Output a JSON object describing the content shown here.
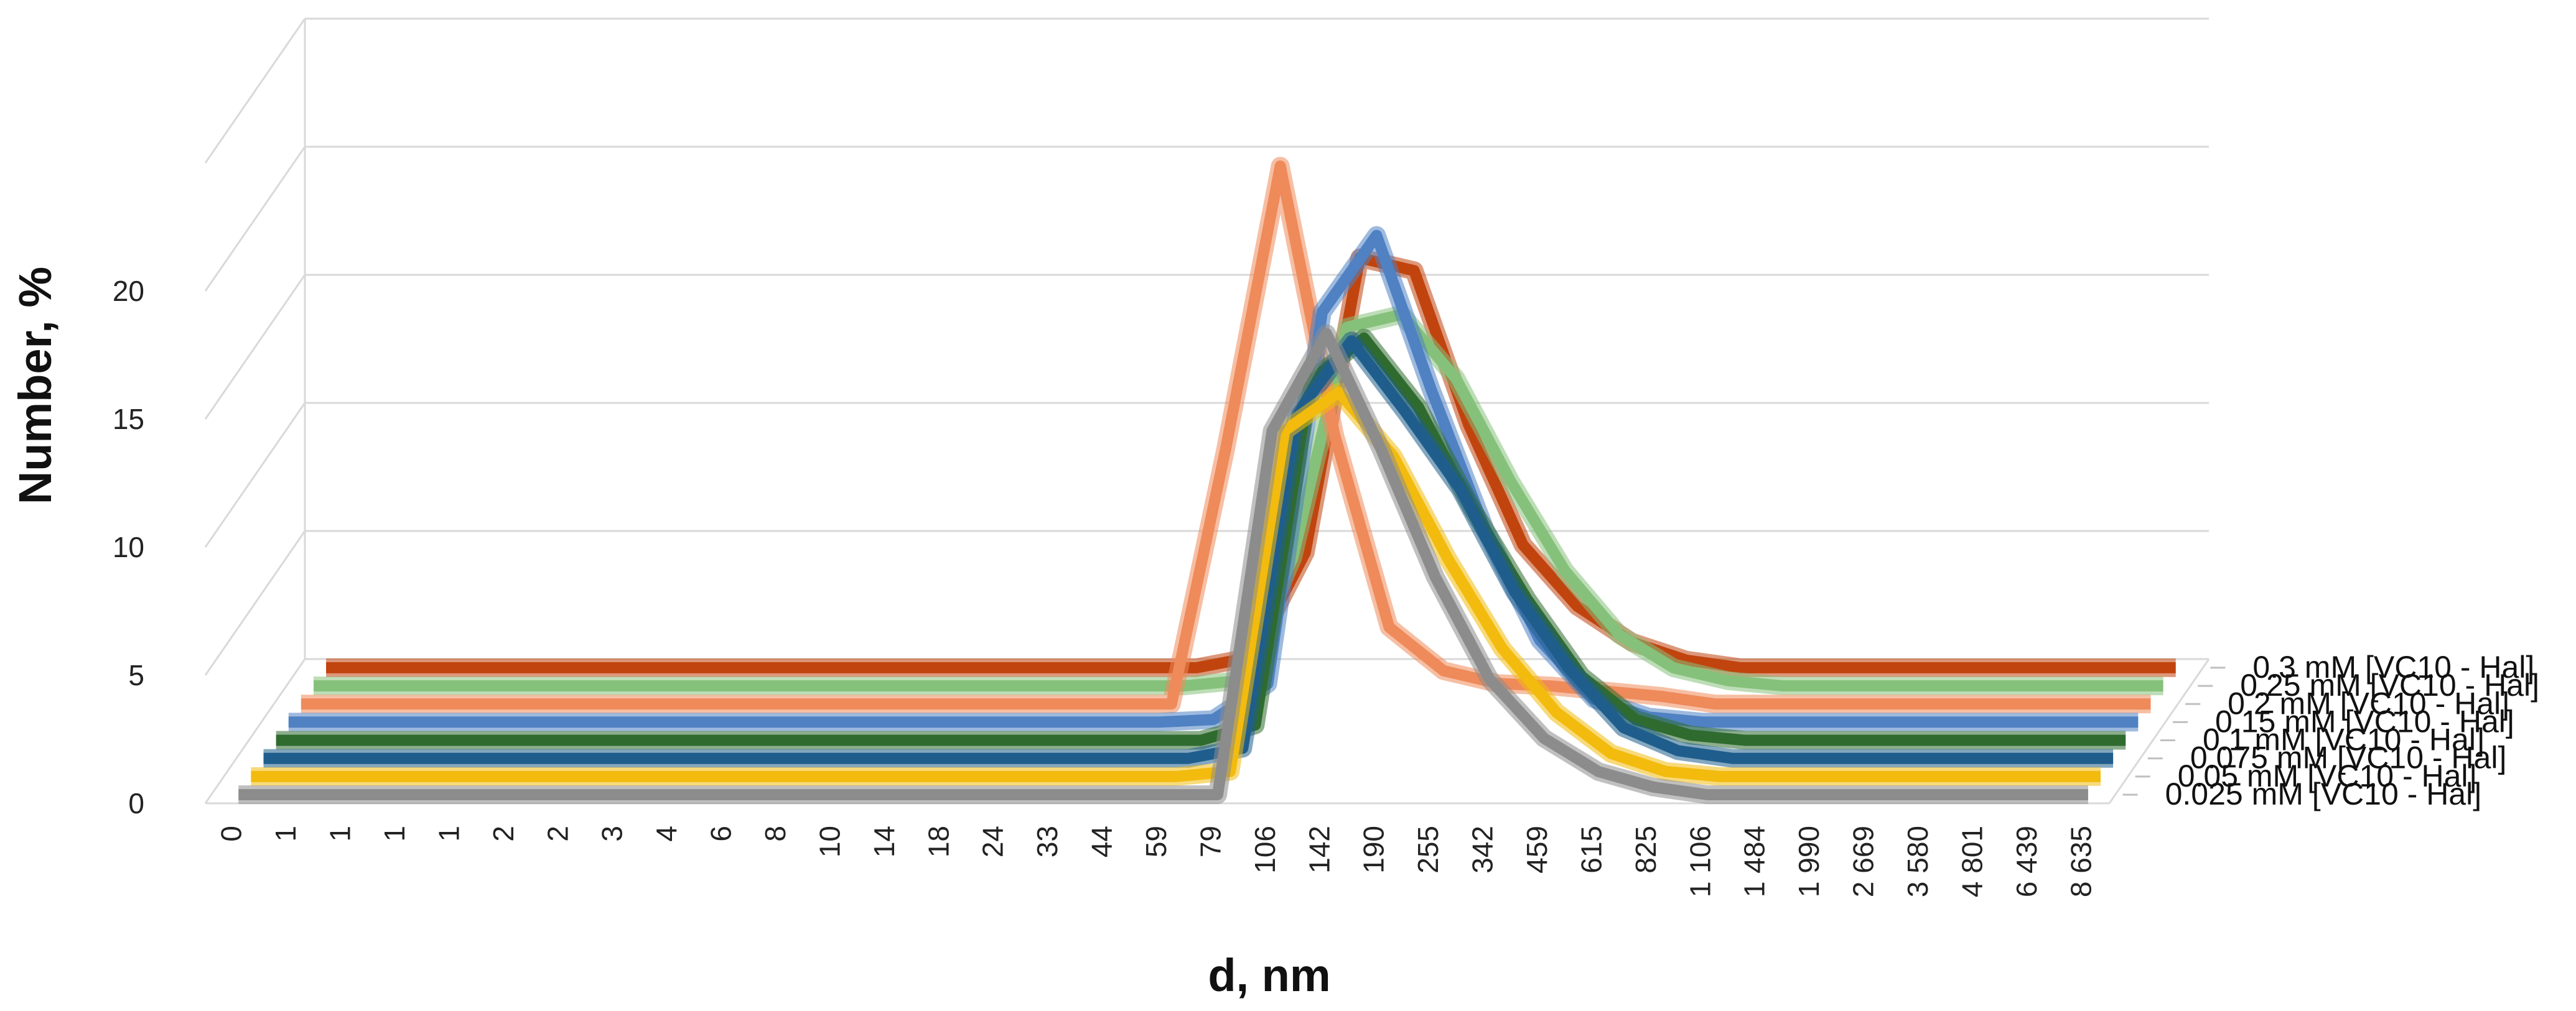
{
  "chart_data": {
    "type": "line",
    "subtype": "3d-line-ribbons",
    "title": "",
    "xlabel": "d, nm",
    "ylabel": "Number, %",
    "ylim": [
      0,
      25
    ],
    "yticks": [
      "0",
      "5",
      "10",
      "15",
      "20"
    ],
    "grid": true,
    "legend_position": "depth-axis-right",
    "categories": [
      "0",
      "1",
      "1",
      "1",
      "1",
      "2",
      "2",
      "3",
      "4",
      "6",
      "8",
      "10",
      "14",
      "18",
      "24",
      "33",
      "44",
      "59",
      "79",
      "106",
      "142",
      "190",
      "255",
      "342",
      "459",
      "615",
      "825",
      "1 106",
      "1 484",
      "1 990",
      "2 669",
      "3 580",
      "4 801",
      "6 439",
      "8 635"
    ],
    "series": [
      {
        "name": "0.025 mM [VC10 - Hal]",
        "color": "#8c8c8c",
        "values": [
          0,
          0,
          0,
          0,
          0,
          0,
          0,
          0,
          0,
          0,
          0,
          0,
          0,
          0,
          0,
          0,
          0,
          0,
          0,
          14.2,
          18,
          13.5,
          8.5,
          4.5,
          2.2,
          0.9,
          0.3,
          0,
          0,
          0,
          0,
          0,
          0,
          0,
          0
        ]
      },
      {
        "name": "0.05 mM [VC10 - Hal]",
        "color": "#f2bb0e",
        "values": [
          0,
          0,
          0,
          0,
          0,
          0,
          0,
          0,
          0,
          0,
          0,
          0,
          0,
          0,
          0,
          0,
          0,
          0,
          0.2,
          13.5,
          15,
          12.5,
          8.5,
          5,
          2.5,
          0.9,
          0.2,
          0,
          0,
          0,
          0,
          0,
          0,
          0,
          0
        ]
      },
      {
        "name": "0.075 mM [VC10 - Hal]",
        "color": "#1f5e8c",
        "values": [
          0,
          0,
          0,
          0,
          0,
          0,
          0,
          0,
          0,
          0,
          0,
          0,
          0,
          0,
          0,
          0,
          0,
          0,
          0.4,
          13.5,
          16.3,
          13.5,
          10.5,
          6.5,
          3.5,
          1.2,
          0.3,
          0,
          0,
          0,
          0,
          0,
          0,
          0,
          0
        ]
      },
      {
        "name": "0.1 mM [VC10 - Hal]",
        "color": "#2f6b2f",
        "values": [
          0,
          0,
          0,
          0,
          0,
          0,
          0,
          0,
          0,
          0,
          0,
          0,
          0,
          0,
          0,
          0,
          0,
          0,
          0.6,
          14,
          15.7,
          13,
          9,
          5.5,
          2.5,
          0.8,
          0.2,
          0,
          0,
          0,
          0,
          0,
          0,
          0,
          0
        ]
      },
      {
        "name": "0.15 mM [VC10 - Hal]",
        "color": "#4f81c3",
        "values": [
          0,
          0,
          0,
          0,
          0,
          0,
          0,
          0,
          0,
          0,
          0,
          0,
          0,
          0,
          0,
          0,
          0,
          0.1,
          1.5,
          16,
          19,
          13,
          7.5,
          3.2,
          0.9,
          0.2,
          0,
          0,
          0,
          0,
          0,
          0,
          0,
          0,
          0
        ]
      },
      {
        "name": "0.2 mM [VC10 - Hal]",
        "color": "#ef8a5a",
        "values": [
          0,
          0,
          0,
          0,
          0,
          0,
          0,
          0,
          0,
          0,
          0,
          0,
          0,
          0,
          0,
          0,
          0,
          10,
          21,
          10.5,
          3,
          1.3,
          0.8,
          0.7,
          0.5,
          0.3,
          0,
          0,
          0,
          0,
          0,
          0,
          0,
          0,
          0
        ]
      },
      {
        "name": "0.25 mM [VC10 - Hal]",
        "color": "#86c17b",
        "values": [
          0,
          0,
          0,
          0,
          0,
          0,
          0,
          0,
          0,
          0,
          0,
          0,
          0,
          0,
          0,
          0,
          0,
          0.2,
          5,
          14,
          14.5,
          12,
          8,
          4.5,
          2,
          0.7,
          0.2,
          0,
          0,
          0,
          0,
          0,
          0,
          0,
          0
        ]
      },
      {
        "name": "0.3 mM [VC10 - Hal]",
        "color": "#c1440e",
        "values": [
          0,
          0,
          0,
          0,
          0,
          0,
          0,
          0,
          0,
          0,
          0,
          0,
          0,
          0,
          0,
          0,
          0,
          0.4,
          4.5,
          16,
          15.5,
          9.5,
          4.8,
          2.4,
          1,
          0.3,
          0,
          0,
          0,
          0,
          0,
          0,
          0,
          0,
          0
        ]
      }
    ]
  }
}
